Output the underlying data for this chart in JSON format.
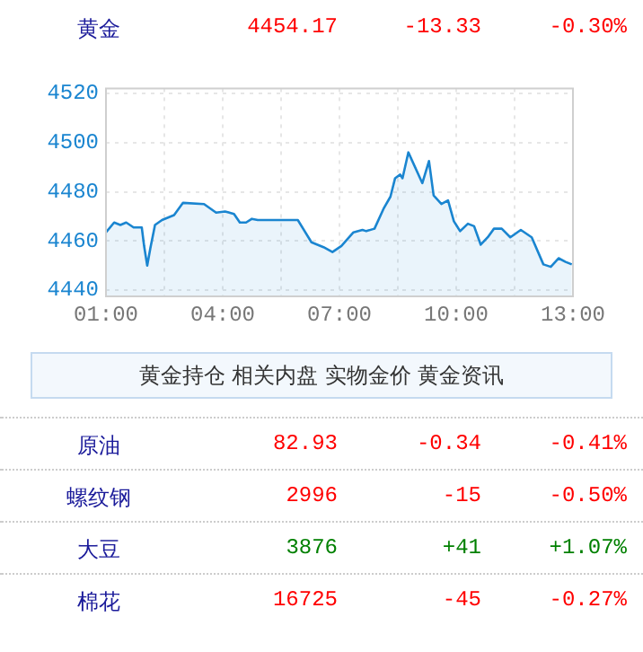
{
  "chart_data": {
    "type": "area",
    "title": "黄金",
    "x": [
      1.0,
      1.21,
      1.37,
      1.52,
      1.71,
      1.92,
      1.98,
      2.06,
      2.14,
      2.26,
      2.44,
      2.75,
      2.98,
      3.52,
      3.83,
      4.06,
      4.29,
      4.44,
      4.6,
      4.75,
      4.9,
      5.93,
      6.28,
      6.59,
      6.82,
      7.05,
      7.36,
      7.59,
      7.69,
      7.9,
      8.13,
      8.31,
      8.43,
      8.56,
      8.62,
      8.77,
      9.13,
      9.3,
      9.42,
      9.62,
      9.79,
      9.94,
      10.1,
      10.3,
      10.46,
      10.63,
      10.81,
      10.97,
      11.17,
      11.39,
      11.66,
      11.94,
      12.24,
      12.43,
      12.63,
      12.81,
      12.97
    ],
    "series": [
      {
        "color": "#1a85d0",
        "values": [
          4463.5,
          4467.5,
          4466.5,
          4467.5,
          4465.5,
          4465.5,
          4458,
          4450,
          4457,
          4466.5,
          4468.5,
          4470.5,
          4475.5,
          4475,
          4471.5,
          4472,
          4471,
          4467.5,
          4467.5,
          4469,
          4468.5,
          4468.5,
          4459.5,
          4457.5,
          4455.5,
          4458,
          4463.5,
          4464.5,
          4464,
          4465,
          4473,
          4478,
          4485.5,
          4487,
          4485.5,
          4496,
          4483.5,
          4492.5,
          4478.5,
          4475,
          4476.5,
          4468,
          4464,
          4467,
          4466,
          4458.5,
          4461.5,
          4465,
          4465,
          4461.5,
          4464.5,
          4461.5,
          4450.5,
          4449.5,
          4453,
          4451.5,
          4450.5
        ]
      }
    ],
    "xlim": [
      1,
      13
    ],
    "xticks": [
      {
        "value": 1,
        "label": "01:00"
      },
      {
        "value": 2.5,
        "label": null
      },
      {
        "value": 4,
        "label": "04:00"
      },
      {
        "value": 5.5,
        "label": null
      },
      {
        "value": 7,
        "label": "07:00"
      },
      {
        "value": 8.5,
        "label": null
      },
      {
        "value": 10,
        "label": "10:00"
      },
      {
        "value": 11.5,
        "label": null
      },
      {
        "value": 13,
        "label": "13:00"
      }
    ],
    "ylim": [
      4437.5,
      4522
    ],
    "yticks": [
      4440,
      4460,
      4480,
      4500,
      4520
    ],
    "grid": true,
    "legend": false,
    "marker": "none",
    "line_style": "solid",
    "annotations": [
      "4454.17",
      "-13.33",
      "-0.30%",
      "黄金持仓",
      "相关内盘",
      "实物金价",
      "黄金资讯",
      "原油",
      "82.93",
      "-0.34",
      "-0.41%",
      "螺纹钢",
      "2996",
      "-15",
      "-0.50%",
      "大豆",
      "3876",
      "+41",
      "+1.07%",
      "棉花",
      "16725",
      "-45",
      "-0.27%"
    ]
  }
}
